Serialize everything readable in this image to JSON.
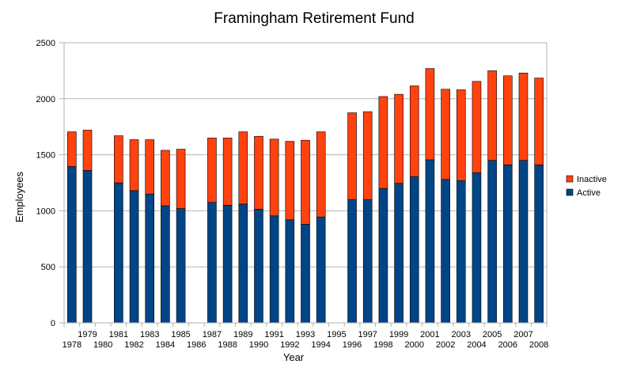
{
  "chart_data": {
    "type": "bar",
    "stacked": true,
    "title": "Framingham Retirement Fund",
    "xlabel": "Year",
    "ylabel": "Employees",
    "ylim": [
      0,
      2500
    ],
    "yticks": [
      0,
      500,
      1000,
      1500,
      2000,
      2500
    ],
    "grid": true,
    "legend_position": "right",
    "categories": [
      "1978",
      "1979",
      "1980",
      "1981",
      "1982",
      "1983",
      "1984",
      "1985",
      "1986",
      "1987",
      "1988",
      "1989",
      "1990",
      "1991",
      "1992",
      "1993",
      "1994",
      "1995",
      "1996",
      "1997",
      "1998",
      "1999",
      "2000",
      "2001",
      "2002",
      "2003",
      "2004",
      "2005",
      "2006",
      "2007",
      "2008"
    ],
    "series": [
      {
        "name": "Active",
        "color": "#004586",
        "values": [
          1395,
          1360,
          null,
          1250,
          1180,
          1150,
          1045,
          1020,
          null,
          1075,
          1050,
          1060,
          1015,
          955,
          920,
          880,
          945,
          null,
          1100,
          1100,
          1200,
          1245,
          1305,
          1455,
          1280,
          1270,
          1340,
          1450,
          1410,
          1450,
          1410
        ]
      },
      {
        "name": "Inactive",
        "color": "#ff420e",
        "values": [
          310,
          360,
          null,
          420,
          455,
          485,
          495,
          530,
          null,
          575,
          600,
          645,
          650,
          685,
          700,
          750,
          760,
          null,
          775,
          785,
          820,
          795,
          810,
          815,
          805,
          810,
          815,
          800,
          795,
          780,
          775
        ]
      }
    ],
    "legend_order": [
      "Inactive",
      "Active"
    ]
  }
}
